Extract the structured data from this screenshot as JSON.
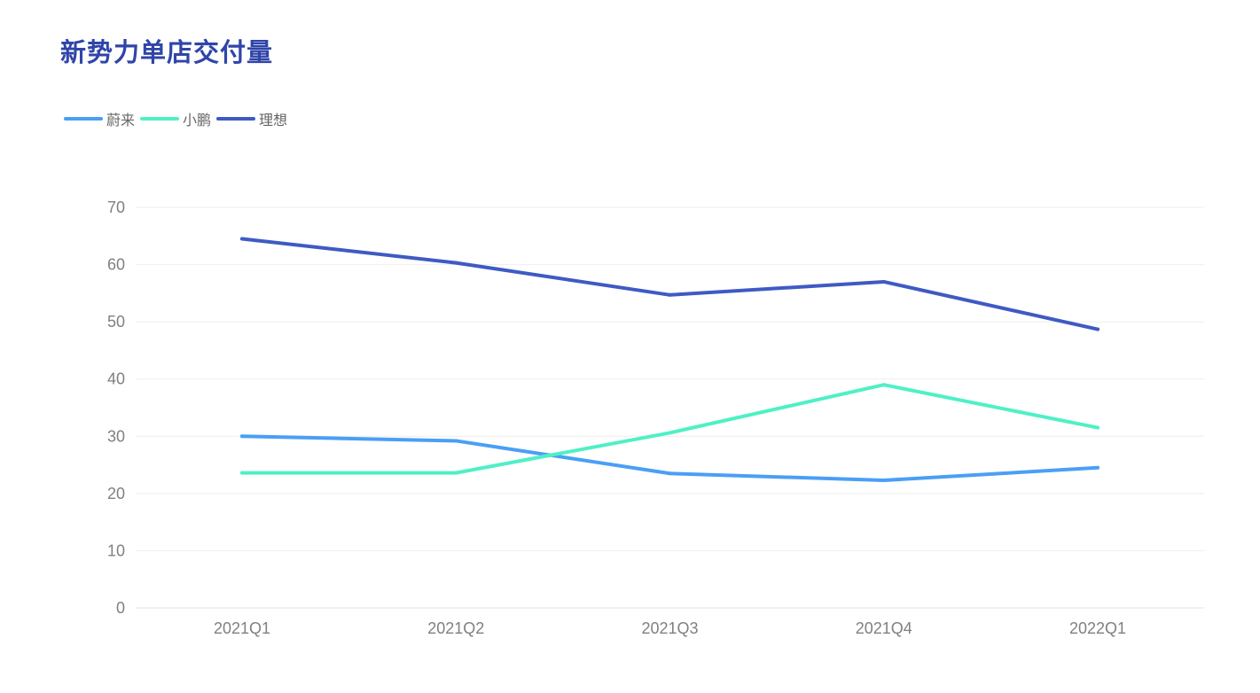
{
  "chart_data": {
    "type": "line",
    "title": "新势力单店交付量",
    "xlabel": "",
    "ylabel": "",
    "categories": [
      "2021Q1",
      "2021Q2",
      "2021Q3",
      "2021Q4",
      "2022Q1"
    ],
    "ylim": [
      0,
      70
    ],
    "yticks": [
      0,
      10,
      20,
      30,
      40,
      50,
      60,
      70
    ],
    "grid": true,
    "legend_position": "top-left",
    "series": [
      {
        "name": "蔚来",
        "color": "#4a9ff5",
        "values": [
          30.0,
          29.2,
          23.5,
          22.3,
          24.5
        ]
      },
      {
        "name": "小鹏",
        "color": "#4ff0c6",
        "values": [
          23.6,
          23.6,
          30.6,
          39.0,
          31.5
        ]
      },
      {
        "name": "理想",
        "color": "#3f5ac3",
        "values": [
          64.5,
          60.3,
          54.7,
          57.0,
          48.7
        ]
      }
    ]
  }
}
